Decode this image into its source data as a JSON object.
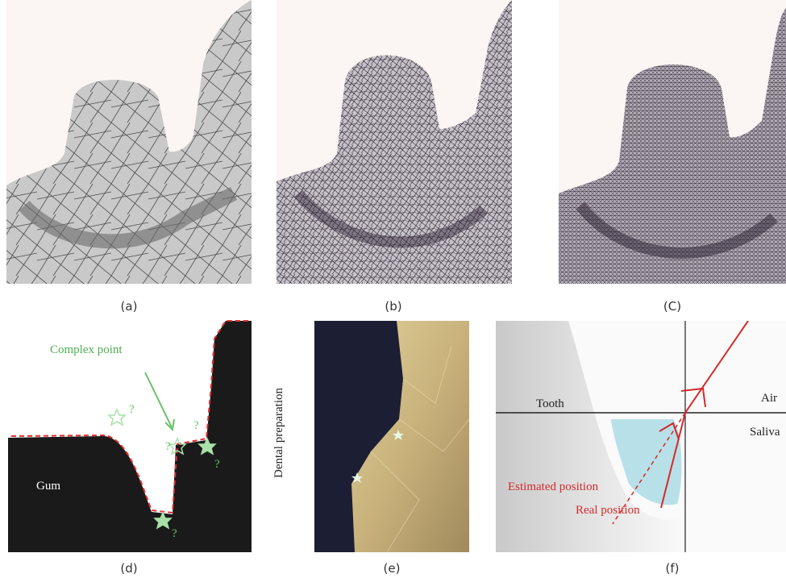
{
  "panels": {
    "captions": [
      "(a)",
      "(b)",
      "(C)",
      "(d)",
      "(e)",
      "(f)"
    ]
  },
  "panel_d": {
    "annotation": "Complex point",
    "region": "Gum",
    "question_marks": [
      "?",
      "?",
      "?",
      "?",
      "?"
    ]
  },
  "panel_e": {
    "axis_label": "Dental preparation"
  },
  "panel_f": {
    "tooth": "Tooth",
    "air": "Air",
    "saliva": "Saliva",
    "estimated": "Estimated position",
    "real": "Real position"
  }
}
